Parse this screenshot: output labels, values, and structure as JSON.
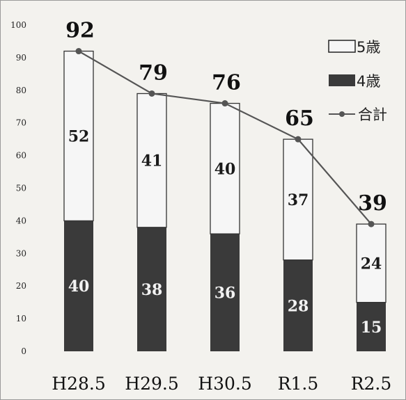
{
  "chart_data": {
    "type": "bar",
    "stacked": true,
    "categories": [
      "H28.5",
      "H29.5",
      "H30.5",
      "R1.5",
      "R2.5"
    ],
    "series": [
      {
        "name": "4歳",
        "values": [
          40,
          38,
          36,
          28,
          15
        ],
        "color": "#3a3a3a"
      },
      {
        "name": "5歳",
        "values": [
          52,
          41,
          40,
          37,
          24
        ],
        "color": "#f6f6f6"
      }
    ],
    "line_series": {
      "name": "合計",
      "values": [
        92,
        79,
        76,
        65,
        39
      ],
      "color": "#555555"
    },
    "yticks": [
      "0",
      "10",
      "20",
      "30",
      "40",
      "50",
      "60",
      "70",
      "80",
      "90",
      "100"
    ],
    "ylim": [
      0,
      100
    ],
    "grid": false,
    "legend_position": "top-right",
    "title": "",
    "xlabel": "",
    "ylabel": ""
  }
}
